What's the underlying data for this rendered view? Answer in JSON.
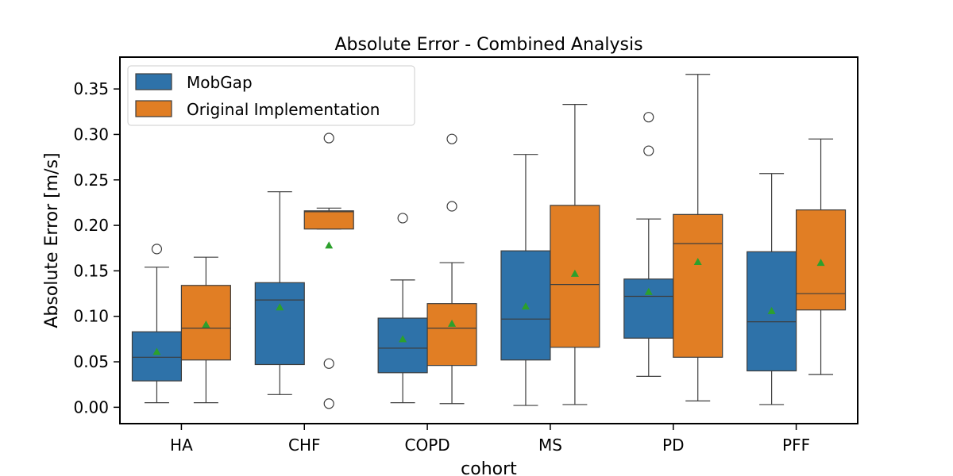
{
  "chart_data": {
    "type": "box",
    "title": "Absolute Error - Combined Analysis",
    "xlabel": "cohort",
    "ylabel": "Absolute Error [m/s]",
    "ylim": [
      -0.018,
      0.385
    ],
    "yticks": [
      "0.00",
      "0.05",
      "0.10",
      "0.15",
      "0.20",
      "0.25",
      "0.30",
      "0.35"
    ],
    "grid": false,
    "legend_position": "top-left",
    "categories": [
      "HA",
      "CHF",
      "COPD",
      "MS",
      "PD",
      "PFF"
    ],
    "series": [
      {
        "name": "MobGap",
        "color": "#2e72a9",
        "boxes": [
          {
            "whisker_low": 0.005,
            "q1": 0.029,
            "median": 0.055,
            "q3": 0.083,
            "whisker_high": 0.154,
            "mean": 0.061,
            "outliers": [
              0.174
            ]
          },
          {
            "whisker_low": 0.014,
            "q1": 0.047,
            "median": 0.118,
            "q3": 0.137,
            "whisker_high": 0.237,
            "mean": 0.11,
            "outliers": []
          },
          {
            "whisker_low": 0.005,
            "q1": 0.038,
            "median": 0.065,
            "q3": 0.098,
            "whisker_high": 0.14,
            "mean": 0.075,
            "outliers": [
              0.208
            ]
          },
          {
            "whisker_low": 0.002,
            "q1": 0.052,
            "median": 0.097,
            "q3": 0.172,
            "whisker_high": 0.278,
            "mean": 0.111,
            "outliers": []
          },
          {
            "whisker_low": 0.034,
            "q1": 0.076,
            "median": 0.122,
            "q3": 0.141,
            "whisker_high": 0.207,
            "mean": 0.127,
            "outliers": [
              0.282,
              0.319
            ]
          },
          {
            "whisker_low": 0.003,
            "q1": 0.04,
            "median": 0.094,
            "q3": 0.171,
            "whisker_high": 0.257,
            "mean": 0.106,
            "outliers": []
          }
        ]
      },
      {
        "name": "Original Implementation",
        "color": "#e17e24",
        "boxes": [
          {
            "whisker_low": 0.005,
            "q1": 0.052,
            "median": 0.087,
            "q3": 0.134,
            "whisker_high": 0.165,
            "mean": 0.091,
            "outliers": []
          },
          {
            "whisker_low": 0.196,
            "q1": 0.196,
            "median": 0.215,
            "q3": 0.216,
            "whisker_high": 0.219,
            "mean": 0.178,
            "outliers": [
              0.296,
              0.048,
              0.004
            ]
          },
          {
            "whisker_low": 0.004,
            "q1": 0.046,
            "median": 0.087,
            "q3": 0.114,
            "whisker_high": 0.159,
            "mean": 0.092,
            "outliers": [
              0.221,
              0.295
            ]
          },
          {
            "whisker_low": 0.003,
            "q1": 0.066,
            "median": 0.135,
            "q3": 0.222,
            "whisker_high": 0.333,
            "mean": 0.147,
            "outliers": []
          },
          {
            "whisker_low": 0.007,
            "q1": 0.055,
            "median": 0.18,
            "q3": 0.212,
            "whisker_high": 0.366,
            "mean": 0.16,
            "outliers": []
          },
          {
            "whisker_low": 0.036,
            "q1": 0.107,
            "median": 0.125,
            "q3": 0.217,
            "whisker_high": 0.295,
            "mean": 0.159,
            "outliers": []
          }
        ]
      }
    ],
    "mean_marker_color": "#2ca02c"
  }
}
